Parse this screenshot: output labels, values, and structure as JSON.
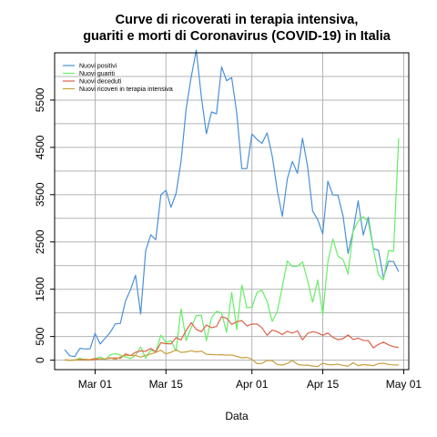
{
  "chart_data": {
    "type": "line",
    "title": "Curve di ricoverati in terapia intensiva,\nguariti e morti di Coronavirus (COVID-19) in Italia",
    "title_lines": [
      "Curve di ricoverati in terapia intensiva,",
      "guariti e morti di Coronavirus (COVID-19) in Italia"
    ],
    "xlabel": "Data",
    "ylabel": "",
    "x_start": "2020-02-24",
    "x_ticks": [
      {
        "date": "2020-03-01",
        "label": "Mar 01"
      },
      {
        "date": "2020-03-15",
        "label": "Mar 15"
      },
      {
        "date": "2020-04-01",
        "label": "Apr 01"
      },
      {
        "date": "2020-04-15",
        "label": "Apr 15"
      },
      {
        "date": "2020-05-01",
        "label": "May 01"
      }
    ],
    "xlim": [
      "2020-02-22",
      "2020-05-02"
    ],
    "ylim": [
      -200,
      6500
    ],
    "y_ticks": [
      0,
      500,
      1500,
      2500,
      3500,
      4500,
      5500
    ],
    "grid": true,
    "legend_position": "top-left",
    "series": [
      {
        "name": "Nuovi positivi",
        "color": "#4a90d9",
        "values": [
          221,
          93,
          78,
          250,
          238,
          240,
          566,
          342,
          466,
          587,
          769,
          778,
          1247,
          1492,
          1797,
          977,
          2313,
          2651,
          2547,
          3497,
          3590,
          3233,
          3526,
          4207,
          5322,
          5986,
          6557,
          5560,
          4789,
          5249,
          5210,
          6203,
          5909,
          5974,
          5217,
          4050,
          4053,
          4782,
          4668,
          4585,
          4805,
          4316,
          3599,
          3039,
          3836,
          4204,
          3951,
          4694,
          4092,
          3153,
          2972,
          2667,
          3786,
          3493,
          3491,
          3047,
          2256,
          2729,
          3370,
          2646,
          3021,
          2357,
          2324,
          1739,
          2091,
          2086,
          1872
        ]
      },
      {
        "name": "Nuovi guariti",
        "color": "#66ee66",
        "values": [
          1,
          0,
          2,
          42,
          1,
          4,
          33,
          66,
          11,
          116,
          138,
          109,
          66,
          33,
          102,
          280,
          41,
          213,
          181,
          527,
          369,
          414,
          192,
          1084,
          415,
          689,
          943,
          952,
          408,
          894,
          1036,
          999,
          589,
          1434,
          646,
          1590,
          1109,
          1118,
          1431,
          1480,
          1238,
          819,
          1022,
          1555,
          2099,
          1979,
          1985,
          2079,
          1677,
          1224,
          1695,
          962,
          2072,
          2563,
          2200,
          2128,
          1822,
          2723,
          2943,
          3033,
          2922,
          2352,
          1808,
          1696,
          2317,
          2304,
          4693
        ]
      },
      {
        "name": "Nuovi deceduti",
        "color": "#e0604a",
        "values": [
          4,
          1,
          5,
          4,
          8,
          5,
          18,
          27,
          28,
          41,
          49,
          36,
          133,
          97,
          168,
          196,
          189,
          250,
          175,
          368,
          349,
          345,
          475,
          427,
          627,
          793,
          651,
          601,
          743,
          683,
          712,
          919,
          889,
          756,
          812,
          837,
          727,
          760,
          766,
          681,
          525,
          636,
          604,
          542,
          610,
          570,
          619,
          431,
          566,
          602,
          578,
          525,
          575,
          482,
          433,
          454,
          534,
          437,
          464,
          420,
          415,
          260,
          333,
          382,
          323,
          285,
          269
        ]
      },
      {
        "name": "Nuovi ricoveri in terapia intensiva",
        "color": "#c8a040",
        "values": [
          9,
          0,
          0,
          20,
          20,
          11,
          40,
          26,
          26,
          54,
          11,
          68,
          105,
          95,
          102,
          64,
          105,
          129,
          163,
          210,
          133,
          166,
          219,
          164,
          175,
          198,
          175,
          193,
          126,
          120,
          112,
          115,
          107,
          112,
          79,
          49,
          59,
          19,
          -74,
          -68,
          -5,
          -9,
          -93,
          -103,
          -70,
          -7,
          -87,
          -106,
          -105,
          -124,
          -134,
          -63,
          -94,
          -97,
          -87,
          -109,
          -129,
          -54,
          -116,
          -94,
          -103,
          -117,
          -74,
          -66,
          -91,
          -99,
          -101
        ]
      }
    ]
  }
}
